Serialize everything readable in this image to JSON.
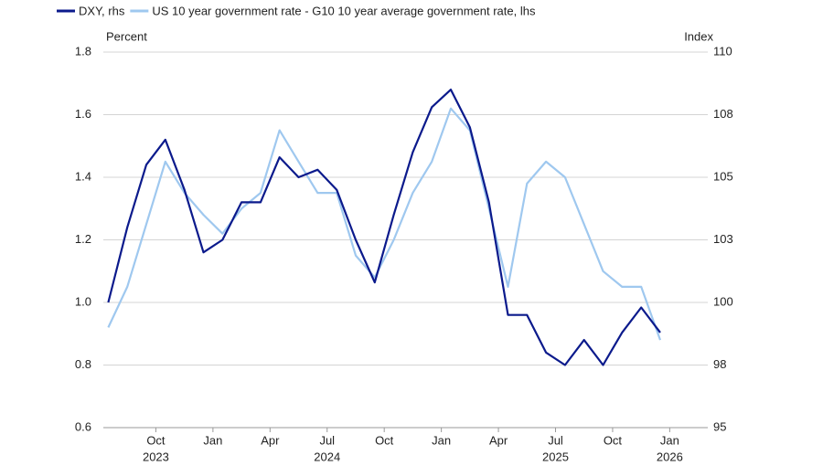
{
  "chart_data": {
    "type": "line",
    "legend_position": "top-left",
    "y_axis_label": "Percent",
    "y2_axis_label": "Index",
    "x": [
      "2023-07",
      "2023-08",
      "2023-09",
      "2023-10",
      "2023-11",
      "2023-12",
      "2024-01",
      "2024-02",
      "2024-03",
      "2024-04",
      "2024-05",
      "2024-06",
      "2024-07",
      "2024-08",
      "2024-09",
      "2024-10",
      "2024-11",
      "2024-12",
      "2025-01",
      "2025-02",
      "2025-03",
      "2025-04",
      "2025-05",
      "2025-06",
      "2025-07",
      "2025-08",
      "2025-09",
      "2025-10",
      "2025-11",
      "2025-12"
    ],
    "xlim": [
      "2023-07",
      "2026-03"
    ],
    "xticks": [
      {
        "value": "2023-10",
        "label": "Oct"
      },
      {
        "value": "2024-01",
        "label": "Jan"
      },
      {
        "value": "2024-04",
        "label": "Apr"
      },
      {
        "value": "2024-07",
        "label": "Jul"
      },
      {
        "value": "2024-10",
        "label": "Oct"
      },
      {
        "value": "2025-01",
        "label": "Jan"
      },
      {
        "value": "2025-04",
        "label": "Apr"
      },
      {
        "value": "2025-07",
        "label": "Jul"
      },
      {
        "value": "2025-10",
        "label": "Oct"
      },
      {
        "value": "2026-01",
        "label": "Jan"
      }
    ],
    "xyear_labels": [
      {
        "value": "2023-10",
        "label": "2023"
      },
      {
        "value": "2024-07",
        "label": "2024"
      },
      {
        "value": "2025-07",
        "label": "2025"
      },
      {
        "value": "2026-01",
        "label": "2026"
      }
    ],
    "ylim": [
      0.6,
      1.8
    ],
    "yticks": [
      0.6,
      0.8,
      {
        "value": 1.0,
        "label": "1.0"
      },
      1.2,
      1.4,
      1.6,
      1.8
    ],
    "y2lim": [
      95,
      110
    ],
    "y2ticks": [
      95,
      {
        "value": 97.5,
        "label": "98"
      },
      100,
      {
        "value": 102.5,
        "label": "103"
      },
      105,
      {
        "value": 107.5,
        "label": "108"
      },
      110
    ],
    "grid": true,
    "series": [
      {
        "name": "DXY, rhs",
        "color": "#0b1a8c",
        "axis": "y2",
        "values": [
          100.0,
          103.0,
          105.5,
          106.5,
          104.5,
          102.0,
          102.5,
          104.0,
          104.0,
          105.8,
          105.0,
          105.3,
          104.5,
          102.5,
          100.8,
          103.5,
          106.0,
          107.8,
          108.5,
          107.0,
          104.0,
          99.5,
          99.5,
          98.0,
          97.5,
          98.5,
          97.5,
          98.8,
          99.8,
          98.8
        ]
      },
      {
        "name": "US 10 year government rate - G10 10 year average government rate, lhs",
        "color": "#9fc8ef",
        "values": [
          0.92,
          1.05,
          1.25,
          1.45,
          1.35,
          1.28,
          1.22,
          1.3,
          1.35,
          1.55,
          1.45,
          1.35,
          1.35,
          1.15,
          1.08,
          1.2,
          1.35,
          1.45,
          1.62,
          1.55,
          1.3,
          1.05,
          1.38,
          1.45,
          1.4,
          1.25,
          1.1,
          1.05,
          1.05,
          0.88
        ]
      }
    ]
  }
}
